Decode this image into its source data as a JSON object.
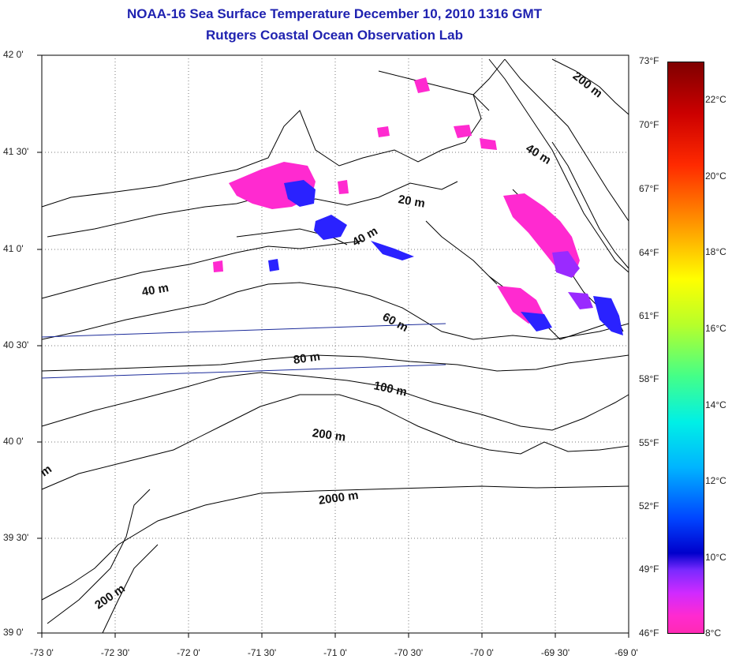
{
  "header": {
    "title": "NOAA-16 Sea Surface Temperature December 10, 2010 1316 GMT",
    "subtitle": "Rutgers Coastal Ocean Observation Lab"
  },
  "axes": {
    "lat_ticks": [
      "42 0'",
      "41 30'",
      "41 0'",
      "40 30'",
      "40 0'",
      "39 30'",
      "39 0'"
    ],
    "lon_ticks": [
      "-73 0'",
      "-72 30'",
      "-72 0'",
      "-71 30'",
      "-71 0'",
      "-70 30'",
      "-70 0'",
      "-69 30'",
      "-69 0'"
    ]
  },
  "colorbar": {
    "fahrenheit_ticks": [
      "73°F",
      "70°F",
      "67°F",
      "64°F",
      "61°F",
      "58°F",
      "55°F",
      "52°F",
      "49°F",
      "46°F"
    ],
    "celsius_ticks": [
      "22°C",
      "20°C",
      "18°C",
      "16°C",
      "14°C",
      "12°C",
      "10°C",
      "8°C"
    ],
    "colors": [
      "#7f0000",
      "#ff0000",
      "#ff8800",
      "#ffff00",
      "#44ff88",
      "#00f0e6",
      "#0044ff",
      "#7a2aff",
      "#ff2ad0"
    ]
  },
  "contour_labels": [
    "200 m",
    "40 m",
    "20 m",
    "40 m",
    "40 m",
    "60 m",
    "80 m",
    "100 m",
    "200 m",
    "2000 m",
    "200 m",
    "m"
  ],
  "sst_colors": {
    "warm": "#ff2ad0",
    "cool": "#1a1aff",
    "mid": "#9a2aff"
  }
}
